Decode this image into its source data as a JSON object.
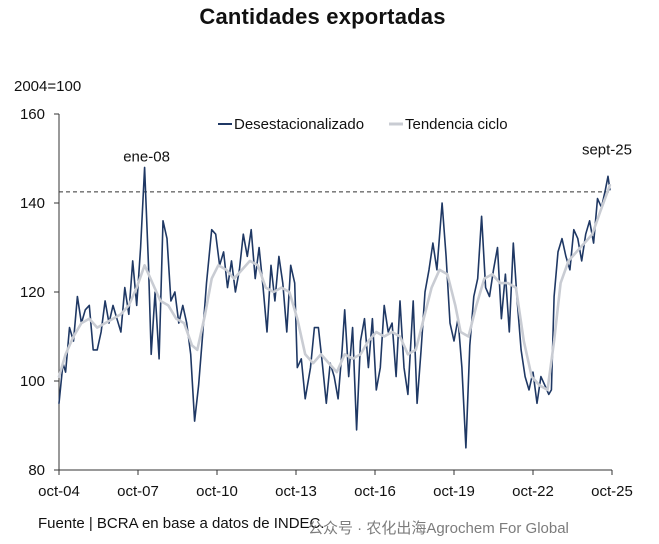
{
  "chart_data": {
    "type": "line",
    "title": "Cantidades exportadas",
    "ylabel": "2004=100",
    "ylim": [
      80,
      160
    ],
    "yticks": [
      80,
      100,
      120,
      140,
      160
    ],
    "xlim": [
      2004.75,
      2025.67
    ],
    "xticks": [
      {
        "label": "oct-04",
        "x": 2004.75
      },
      {
        "label": "oct-07",
        "x": 2007.75
      },
      {
        "label": "oct-10",
        "x": 2010.75
      },
      {
        "label": "oct-13",
        "x": 2013.75
      },
      {
        "label": "oct-16",
        "x": 2016.75
      },
      {
        "label": "oct-19",
        "x": 2019.75
      },
      {
        "label": "oct-22",
        "x": 2022.75
      },
      {
        "label": "oct-25",
        "x": 2025.75
      }
    ],
    "legend": [
      "Desestacionalizado",
      "Tendencia ciclo"
    ],
    "reference_line": {
      "y": 142.5,
      "style": "dashed"
    },
    "annotations": [
      {
        "text": "ene-08",
        "x": 2008.0,
        "y": 147.5
      },
      {
        "text": "sept-25",
        "x": 2025.67,
        "y": 145.5
      }
    ],
    "series": [
      {
        "name": "Desestacionalizado",
        "color": "#1f3864",
        "points": [
          [
            2004.75,
            95
          ],
          [
            2004.9,
            104
          ],
          [
            2005.0,
            102
          ],
          [
            2005.15,
            112
          ],
          [
            2005.3,
            109
          ],
          [
            2005.45,
            119
          ],
          [
            2005.6,
            113
          ],
          [
            2005.75,
            116
          ],
          [
            2005.9,
            117
          ],
          [
            2006.05,
            107
          ],
          [
            2006.2,
            107
          ],
          [
            2006.35,
            111
          ],
          [
            2006.5,
            118
          ],
          [
            2006.65,
            113
          ],
          [
            2006.8,
            117
          ],
          [
            2006.95,
            114
          ],
          [
            2007.1,
            111
          ],
          [
            2007.25,
            121
          ],
          [
            2007.4,
            115
          ],
          [
            2007.55,
            127
          ],
          [
            2007.7,
            117
          ],
          [
            2007.85,
            130
          ],
          [
            2008.0,
            148
          ],
          [
            2008.15,
            126
          ],
          [
            2008.25,
            106
          ],
          [
            2008.4,
            120
          ],
          [
            2008.55,
            105
          ],
          [
            2008.7,
            136
          ],
          [
            2008.85,
            132
          ],
          [
            2009.0,
            118
          ],
          [
            2009.15,
            120
          ],
          [
            2009.3,
            113
          ],
          [
            2009.45,
            117
          ],
          [
            2009.6,
            113
          ],
          [
            2009.75,
            106
          ],
          [
            2009.9,
            91
          ],
          [
            2010.05,
            99
          ],
          [
            2010.2,
            110
          ],
          [
            2010.35,
            122
          ],
          [
            2010.55,
            134
          ],
          [
            2010.7,
            133
          ],
          [
            2010.85,
            126
          ],
          [
            2011.0,
            129
          ],
          [
            2011.15,
            121
          ],
          [
            2011.3,
            127
          ],
          [
            2011.45,
            120
          ],
          [
            2011.6,
            125
          ],
          [
            2011.75,
            133
          ],
          [
            2011.9,
            128
          ],
          [
            2012.05,
            134
          ],
          [
            2012.2,
            123
          ],
          [
            2012.35,
            130
          ],
          [
            2012.5,
            121
          ],
          [
            2012.65,
            111
          ],
          [
            2012.8,
            126
          ],
          [
            2012.95,
            118
          ],
          [
            2013.1,
            128
          ],
          [
            2013.25,
            122
          ],
          [
            2013.4,
            111
          ],
          [
            2013.55,
            126
          ],
          [
            2013.7,
            122
          ],
          [
            2013.8,
            103
          ],
          [
            2013.95,
            105
          ],
          [
            2014.1,
            96
          ],
          [
            2014.3,
            103
          ],
          [
            2014.45,
            112
          ],
          [
            2014.6,
            112
          ],
          [
            2014.75,
            104
          ],
          [
            2014.9,
            95
          ],
          [
            2015.05,
            104
          ],
          [
            2015.2,
            101
          ],
          [
            2015.35,
            96
          ],
          [
            2015.5,
            107
          ],
          [
            2015.6,
            116
          ],
          [
            2015.75,
            101
          ],
          [
            2015.9,
            112
          ],
          [
            2016.05,
            89
          ],
          [
            2016.2,
            109
          ],
          [
            2016.35,
            114
          ],
          [
            2016.5,
            103
          ],
          [
            2016.65,
            114
          ],
          [
            2016.8,
            98
          ],
          [
            2016.95,
            103
          ],
          [
            2017.1,
            117
          ],
          [
            2017.25,
            111
          ],
          [
            2017.4,
            113
          ],
          [
            2017.55,
            101
          ],
          [
            2017.7,
            118
          ],
          [
            2017.85,
            103
          ],
          [
            2018.0,
            97
          ],
          [
            2018.2,
            118
          ],
          [
            2018.35,
            95
          ],
          [
            2018.5,
            107
          ],
          [
            2018.65,
            120
          ],
          [
            2018.8,
            125
          ],
          [
            2018.95,
            131
          ],
          [
            2019.1,
            125
          ],
          [
            2019.3,
            140
          ],
          [
            2019.45,
            128
          ],
          [
            2019.6,
            113
          ],
          [
            2019.75,
            109
          ],
          [
            2019.9,
            114
          ],
          [
            2020.05,
            103
          ],
          [
            2020.2,
            85
          ],
          [
            2020.35,
            108
          ],
          [
            2020.5,
            119
          ],
          [
            2020.65,
            123
          ],
          [
            2020.8,
            137
          ],
          [
            2020.95,
            121
          ],
          [
            2021.1,
            119
          ],
          [
            2021.25,
            125
          ],
          [
            2021.4,
            130
          ],
          [
            2021.55,
            114
          ],
          [
            2021.7,
            124
          ],
          [
            2021.85,
            111
          ],
          [
            2022.0,
            131
          ],
          [
            2022.15,
            118
          ],
          [
            2022.3,
            107
          ],
          [
            2022.45,
            101
          ],
          [
            2022.6,
            98
          ],
          [
            2022.75,
            102
          ],
          [
            2022.9,
            95
          ],
          [
            2023.05,
            101
          ],
          [
            2023.2,
            99
          ],
          [
            2023.35,
            97
          ],
          [
            2023.45,
            98
          ],
          [
            2023.55,
            119
          ],
          [
            2023.7,
            129
          ],
          [
            2023.85,
            132
          ],
          [
            2024.0,
            128
          ],
          [
            2024.15,
            125
          ],
          [
            2024.3,
            134
          ],
          [
            2024.45,
            132
          ],
          [
            2024.6,
            127
          ],
          [
            2024.75,
            133
          ],
          [
            2024.9,
            136
          ],
          [
            2025.05,
            131
          ],
          [
            2025.2,
            141
          ],
          [
            2025.35,
            139
          ],
          [
            2025.5,
            143
          ],
          [
            2025.6,
            146
          ],
          [
            2025.67,
            143
          ]
        ]
      },
      {
        "name": "Tendencia ciclo",
        "color": "#c9ccd3",
        "points": [
          [
            2004.75,
            101
          ],
          [
            2005.0,
            106
          ],
          [
            2005.3,
            110
          ],
          [
            2005.6,
            113
          ],
          [
            2005.9,
            114
          ],
          [
            2006.2,
            112
          ],
          [
            2006.5,
            113
          ],
          [
            2006.8,
            114
          ],
          [
            2007.1,
            115
          ],
          [
            2007.4,
            117
          ],
          [
            2007.7,
            121
          ],
          [
            2008.0,
            126
          ],
          [
            2008.3,
            122
          ],
          [
            2008.6,
            118
          ],
          [
            2008.9,
            117
          ],
          [
            2009.2,
            114
          ],
          [
            2009.5,
            113
          ],
          [
            2009.8,
            108
          ],
          [
            2010.0,
            107
          ],
          [
            2010.3,
            115
          ],
          [
            2010.55,
            123
          ],
          [
            2010.8,
            126
          ],
          [
            2011.1,
            125
          ],
          [
            2011.4,
            123
          ],
          [
            2011.7,
            125
          ],
          [
            2012.0,
            127
          ],
          [
            2012.3,
            126
          ],
          [
            2012.6,
            121
          ],
          [
            2012.9,
            120
          ],
          [
            2013.2,
            121
          ],
          [
            2013.5,
            120
          ],
          [
            2013.8,
            114
          ],
          [
            2014.1,
            106
          ],
          [
            2014.4,
            104
          ],
          [
            2014.7,
            106
          ],
          [
            2015.0,
            104
          ],
          [
            2015.3,
            102
          ],
          [
            2015.6,
            106
          ],
          [
            2015.9,
            105
          ],
          [
            2016.2,
            106
          ],
          [
            2016.5,
            109
          ],
          [
            2016.8,
            111
          ],
          [
            2017.1,
            110
          ],
          [
            2017.4,
            111
          ],
          [
            2017.7,
            110
          ],
          [
            2018.0,
            106
          ],
          [
            2018.3,
            107
          ],
          [
            2018.6,
            114
          ],
          [
            2018.9,
            121
          ],
          [
            2019.2,
            125
          ],
          [
            2019.5,
            124
          ],
          [
            2019.8,
            117
          ],
          [
            2020.0,
            111
          ],
          [
            2020.3,
            110
          ],
          [
            2020.6,
            117
          ],
          [
            2020.9,
            123
          ],
          [
            2021.2,
            124
          ],
          [
            2021.5,
            122
          ],
          [
            2021.8,
            122
          ],
          [
            2022.1,
            121
          ],
          [
            2022.4,
            109
          ],
          [
            2022.7,
            101
          ],
          [
            2023.0,
            99
          ],
          [
            2023.3,
            98
          ],
          [
            2023.55,
            109
          ],
          [
            2023.8,
            122
          ],
          [
            2024.1,
            127
          ],
          [
            2024.4,
            129
          ],
          [
            2024.7,
            131
          ],
          [
            2025.0,
            133
          ],
          [
            2025.3,
            138
          ],
          [
            2025.55,
            142
          ],
          [
            2025.67,
            144
          ]
        ]
      }
    ]
  },
  "source": "Fuente | BCRA en base a datos de INDEC.",
  "watermark": "公众号 · 农化出海Agrochem For Global"
}
